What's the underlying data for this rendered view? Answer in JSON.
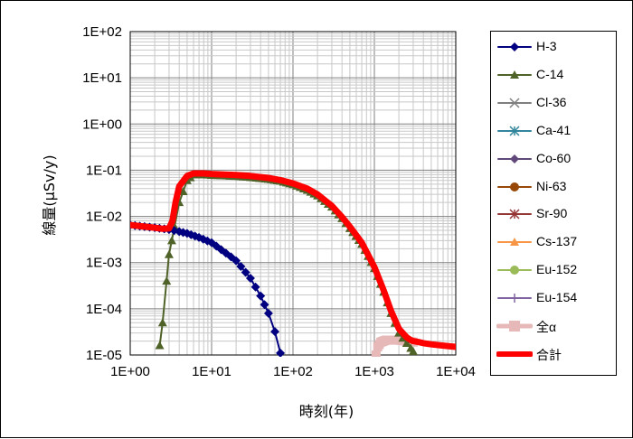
{
  "chart_data": {
    "type": "line",
    "title": "",
    "xlabel": "時刻(年)",
    "ylabel": "線量(μSv/y)",
    "xscale": "log",
    "yscale": "log",
    "xlim": [
      1,
      10000
    ],
    "ylim": [
      1e-05,
      100
    ],
    "x_tick_labels": [
      "1E+00",
      "1E+01",
      "1E+02",
      "1E+03",
      "1E+04"
    ],
    "y_tick_labels": [
      "1E+02",
      "1E+01",
      "1E+00",
      "1E-01",
      "1E-02",
      "1E-03",
      "1E-04",
      "1E-05"
    ],
    "grid": true,
    "legend_placement": "right",
    "series": [
      {
        "name": "H-3",
        "color": "#000080",
        "marker": "diamond",
        "x": [
          1,
          1.5,
          2,
          3,
          4,
          5,
          7,
          10,
          15,
          20,
          30,
          40,
          50,
          60,
          70
        ],
        "y": [
          0.0065,
          0.006,
          0.0057,
          0.0052,
          0.0047,
          0.0043,
          0.0035,
          0.0027,
          0.0016,
          0.0011,
          0.00046,
          0.00019,
          8e-05,
          3.2e-05,
          1.1e-05
        ]
      },
      {
        "name": "C-14",
        "color": "#4f6228",
        "marker": "triangle",
        "x": [
          2.3,
          2.5,
          2.8,
          3,
          3.5,
          4,
          5,
          6,
          8,
          10,
          20,
          30,
          50,
          70,
          100,
          150,
          200,
          300,
          400,
          500,
          700,
          1000,
          1300,
          1600,
          2000,
          2500,
          2800,
          3000
        ],
        "y": [
          1.6e-05,
          5e-05,
          0.0004,
          0.0015,
          0.006,
          0.02,
          0.06,
          0.08,
          0.08,
          0.078,
          0.074,
          0.07,
          0.064,
          0.058,
          0.049,
          0.037,
          0.028,
          0.016,
          0.009,
          0.0055,
          0.0025,
          0.00075,
          0.00023,
          8e-05,
          3e-05,
          1.8e-05,
          1.4e-05,
          1.2e-05
        ]
      },
      {
        "name": "Cl-36",
        "color": "#7f7f7f",
        "marker": "x",
        "x": [],
        "y": []
      },
      {
        "name": "Ca-41",
        "color": "#31859c",
        "marker": "star",
        "x": [],
        "y": []
      },
      {
        "name": "Co-60",
        "color": "#60497a",
        "marker": "diamond",
        "x": [],
        "y": []
      },
      {
        "name": "Ni-63",
        "color": "#974806",
        "marker": "circle",
        "x": [],
        "y": []
      },
      {
        "name": "Sr-90",
        "color": "#953735",
        "marker": "star",
        "x": [],
        "y": []
      },
      {
        "name": "Cs-137",
        "color": "#f79646",
        "marker": "triangle",
        "x": [],
        "y": []
      },
      {
        "name": "Eu-152",
        "color": "#9bbb59",
        "marker": "circle",
        "x": [],
        "y": []
      },
      {
        "name": "Eu-154",
        "color": "#8064a2",
        "marker": "plus",
        "x": [],
        "y": []
      },
      {
        "name": "全α",
        "color": "#e6b9b8",
        "marker": "square",
        "x": [
          1050,
          1100,
          1200,
          1400,
          1700,
          2000,
          2500,
          3000
        ],
        "y": [
          1e-05,
          1.5e-05,
          1.9e-05,
          2.1e-05,
          2.1e-05,
          2.1e-05,
          2e-05,
          1.9e-05
        ]
      },
      {
        "name": "合計",
        "color": "#ff0000",
        "marker": "none",
        "x": [
          1,
          1.5,
          2,
          2.5,
          3,
          3.3,
          3.6,
          4,
          5,
          6,
          8,
          10,
          20,
          30,
          50,
          70,
          100,
          150,
          200,
          300,
          400,
          500,
          700,
          1000,
          1300,
          1600,
          2000,
          2500,
          2800,
          3000,
          3500,
          4000,
          5000,
          7000,
          10000
        ],
        "y": [
          0.0065,
          0.006,
          0.0057,
          0.0054,
          0.0055,
          0.008,
          0.02,
          0.045,
          0.075,
          0.085,
          0.085,
          0.083,
          0.079,
          0.075,
          0.068,
          0.061,
          0.052,
          0.04,
          0.03,
          0.017,
          0.0097,
          0.006,
          0.0027,
          0.0008,
          0.00025,
          9e-05,
          3.7e-05,
          2.4e-05,
          2.1e-05,
          2e-05,
          1.9e-05,
          1.8e-05,
          1.7e-05,
          1.6e-05,
          1.5e-05
        ]
      }
    ]
  }
}
